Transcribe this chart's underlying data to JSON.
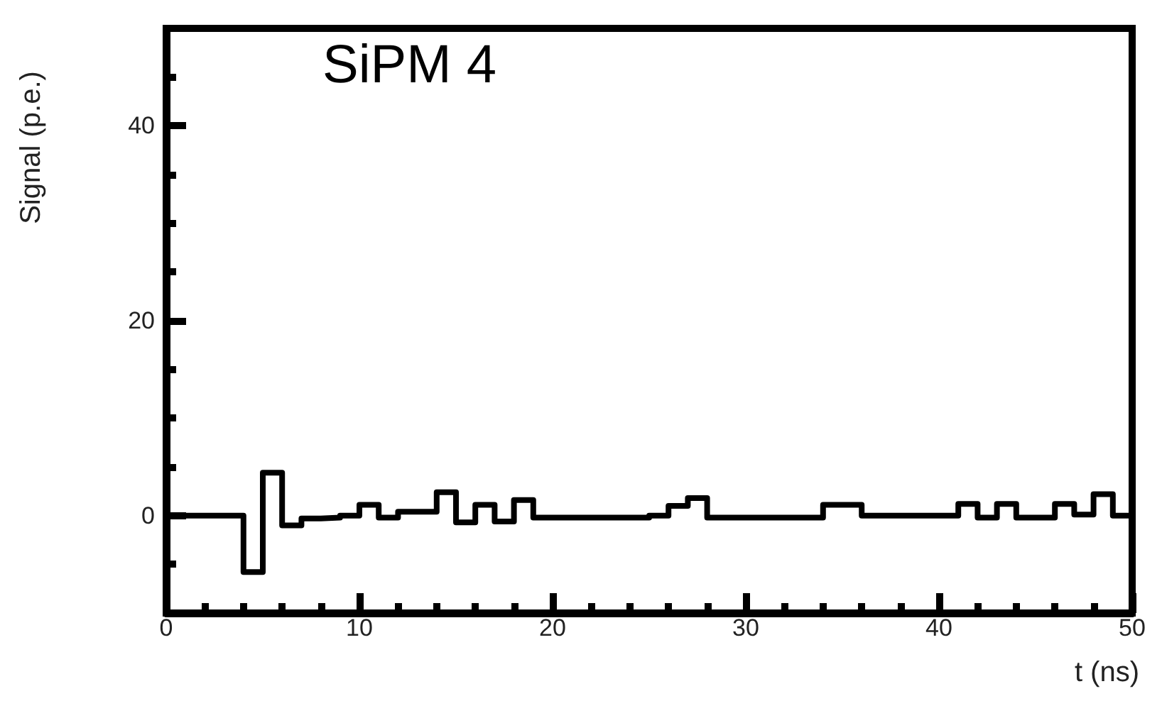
{
  "chart_data": {
    "type": "histogram",
    "title": "SiPM 4",
    "xlabel": "t (ns)",
    "ylabel": "Signal (p.e.)",
    "bins": [
      0,
      1,
      2,
      3,
      4,
      5,
      6,
      7,
      8,
      9,
      10,
      11,
      12,
      13,
      14,
      15,
      16,
      17,
      18,
      19,
      20,
      21,
      22,
      23,
      24,
      25,
      26,
      27,
      28,
      29,
      30,
      31,
      32,
      33,
      34,
      35,
      36,
      37,
      38,
      39,
      40,
      41,
      42,
      43,
      44,
      45,
      46,
      47,
      48,
      49,
      50
    ],
    "values": [
      0,
      0,
      0,
      0,
      -5.8,
      4.4,
      -1,
      -0.3,
      -0.2,
      0,
      1.1,
      -0.2,
      0.4,
      0.4,
      2.4,
      -0.7,
      1.1,
      -0.6,
      1.6,
      -0.2,
      -0.2,
      -0.2,
      -0.2,
      -0.2,
      -0.2,
      0,
      1,
      1.8,
      -0.2,
      -0.2,
      -0.2,
      -0.2,
      -0.2,
      -0.2,
      1.1,
      1.1,
      0,
      0,
      0,
      0,
      0,
      1.2,
      -0.2,
      1.2,
      -0.2,
      -0.2,
      1.2,
      0.1,
      2.2,
      0
    ],
    "color": "#000000",
    "line_style": "solid",
    "grid": false,
    "xlim": [
      0,
      50
    ],
    "ylim": [
      -10,
      50
    ],
    "xticks": [
      0,
      {
        "value": 2,
        "label": null
      },
      {
        "value": 4,
        "label": null
      },
      {
        "value": 6,
        "label": null
      },
      {
        "value": 8,
        "label": null
      },
      10,
      {
        "value": 12,
        "label": null
      },
      {
        "value": 14,
        "label": null
      },
      {
        "value": 16,
        "label": null
      },
      {
        "value": 18,
        "label": null
      },
      20,
      {
        "value": 22,
        "label": null
      },
      {
        "value": 24,
        "label": null
      },
      {
        "value": 26,
        "label": null
      },
      {
        "value": 28,
        "label": null
      },
      30,
      {
        "value": 32,
        "label": null
      },
      {
        "value": 34,
        "label": null
      },
      {
        "value": 36,
        "label": null
      },
      {
        "value": 38,
        "label": null
      },
      40,
      {
        "value": 42,
        "label": null
      },
      {
        "value": 44,
        "label": null
      },
      {
        "value": 46,
        "label": null
      },
      {
        "value": 48,
        "label": null
      },
      50
    ],
    "yticks": [
      {
        "value": -5,
        "label": null
      },
      0,
      {
        "value": 5,
        "label": null
      },
      {
        "value": 10,
        "label": null
      },
      {
        "value": 15,
        "label": null
      },
      20,
      {
        "value": 25,
        "label": null
      },
      {
        "value": 30,
        "label": null
      },
      {
        "value": 35,
        "label": null
      },
      40,
      {
        "value": 45,
        "label": null
      }
    ]
  }
}
